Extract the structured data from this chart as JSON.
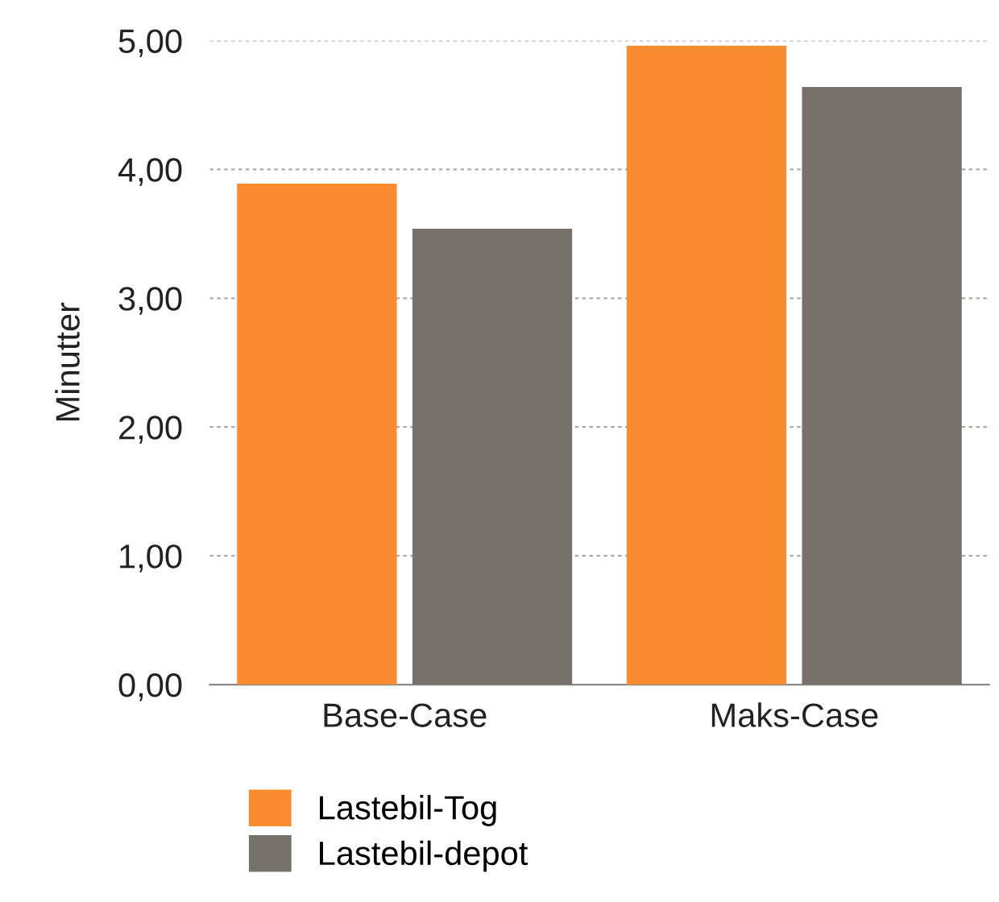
{
  "chart_data": {
    "type": "bar",
    "ylabel": "Minutter",
    "categories": [
      "Base-Case",
      "Maks-Case"
    ],
    "series": [
      {
        "name": "Lastebil-Tog",
        "color": "#fb8b2f",
        "values": [
          3.89,
          4.96
        ]
      },
      {
        "name": "Lastebil-depot",
        "color": "#76726a",
        "values": [
          3.54,
          4.64
        ]
      }
    ],
    "ylim": [
      0,
      5
    ],
    "yticks": [
      {
        "value": 0,
        "label": "0,00"
      },
      {
        "value": 1,
        "label": "1,00"
      },
      {
        "value": 2,
        "label": "2,00"
      },
      {
        "value": 3,
        "label": "3,00"
      },
      {
        "value": 4,
        "label": "4,00"
      },
      {
        "value": 5,
        "label": "5,00"
      }
    ],
    "grid": "y",
    "legend": "bottom left"
  }
}
